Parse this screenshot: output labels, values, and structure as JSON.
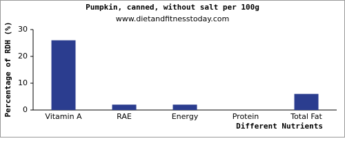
{
  "chart_data": {
    "type": "bar",
    "title": "Pumpkin, canned, without salt per 100g",
    "subtitle": "www.dietandfitnesstoday.com",
    "y_label": "Percentage of RDH (%)",
    "x_label": "Different Nutrients",
    "categories": [
      "Vitamin A",
      "RAE",
      "Energy",
      "Protein",
      "Total Fat"
    ],
    "values": [
      26,
      2,
      2,
      0,
      6
    ],
    "color": "#2b3d8f",
    "ylim": [
      0,
      30
    ],
    "yticks": [
      0,
      10,
      20,
      30
    ],
    "grid": false
  }
}
